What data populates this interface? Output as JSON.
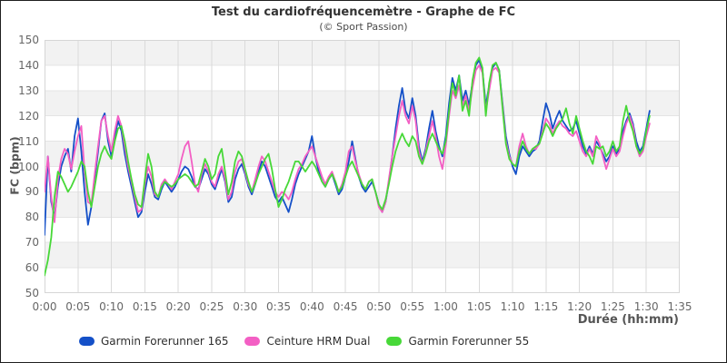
{
  "chart_data": {
    "type": "line",
    "title": "Test du cardiofréquencemètre - Graphe de FC",
    "subtitle": "(© Sport Passion)",
    "xlabel": "Durée (hh:mm)",
    "ylabel": "FC (bpm)",
    "ylim": [
      50,
      150
    ],
    "xlim_minutes": [
      0,
      95
    ],
    "y_ticks": [
      50,
      60,
      70,
      80,
      90,
      100,
      110,
      120,
      130,
      140,
      150
    ],
    "x_ticks": [
      {
        "minutes": 0,
        "label": "0:00"
      },
      {
        "minutes": 5,
        "label": "0:05"
      },
      {
        "minutes": 10,
        "label": "0:10"
      },
      {
        "minutes": 15,
        "label": "0:15"
      },
      {
        "minutes": 20,
        "label": "0:20"
      },
      {
        "minutes": 25,
        "label": "0:25"
      },
      {
        "minutes": 30,
        "label": "0:30"
      },
      {
        "minutes": 35,
        "label": "0:35"
      },
      {
        "minutes": 40,
        "label": "0:40"
      },
      {
        "minutes": 45,
        "label": "0:45"
      },
      {
        "minutes": 50,
        "label": "0:50"
      },
      {
        "minutes": 55,
        "label": "0:55"
      },
      {
        "minutes": 60,
        "label": "1:00"
      },
      {
        "minutes": 65,
        "label": "1:05"
      },
      {
        "minutes": 70,
        "label": "1:10"
      },
      {
        "minutes": 75,
        "label": "1:15"
      },
      {
        "minutes": 80,
        "label": "1:20"
      },
      {
        "minutes": 85,
        "label": "1:25"
      },
      {
        "minutes": 90,
        "label": "1:30"
      },
      {
        "minutes": 95,
        "label": "1:35"
      }
    ],
    "sample_step_minutes": 0.5,
    "grid": true,
    "band_fill_alternating": true,
    "legend_position": "bottom",
    "series": [
      {
        "name": "Garmin Forerunner 165",
        "color": "#1450C8",
        "values": [
          73,
          104,
          86,
          80,
          92,
          100,
          104,
          107,
          98,
          112,
          119,
          106,
          90,
          77,
          84,
          95,
          106,
          118,
          121,
          110,
          104,
          112,
          118,
          114,
          105,
          98,
          92,
          86,
          80,
          82,
          90,
          97,
          93,
          88,
          87,
          91,
          94,
          92,
          90,
          92,
          95,
          98,
          100,
          99,
          96,
          92,
          91,
          95,
          99,
          97,
          93,
          91,
          95,
          99,
          94,
          86,
          88,
          95,
          99,
          101,
          97,
          92,
          89,
          93,
          98,
          102,
          100,
          96,
          92,
          88,
          86,
          88,
          85,
          82,
          87,
          93,
          97,
          100,
          103,
          106,
          112,
          104,
          98,
          94,
          92,
          95,
          97,
          93,
          89,
          91,
          96,
          102,
          110,
          103,
          96,
          92,
          90,
          92,
          94,
          90,
          85,
          82,
          86,
          94,
          104,
          115,
          124,
          131,
          122,
          119,
          127,
          120,
          108,
          102,
          107,
          115,
          122,
          114,
          108,
          104,
          112,
          125,
          135,
          130,
          136,
          126,
          130,
          124,
          133,
          140,
          142,
          138,
          124,
          132,
          139,
          141,
          138,
          125,
          112,
          105,
          100,
          97,
          104,
          108,
          106,
          104,
          106,
          107,
          110,
          118,
          125,
          121,
          115,
          119,
          122,
          118,
          116,
          114,
          115,
          118,
          113,
          108,
          105,
          108,
          105,
          110,
          108,
          105,
          102,
          104,
          108,
          105,
          107,
          114,
          118,
          121,
          117,
          110,
          106,
          108,
          115,
          122
        ]
      },
      {
        "name": "Ceinture HRM Dual",
        "color": "#F35FC4",
        "values": [
          90,
          104,
          88,
          78,
          95,
          103,
          107,
          105,
          99,
          106,
          112,
          116,
          98,
          86,
          85,
          97,
          108,
          118,
          120,
          112,
          106,
          114,
          120,
          116,
          108,
          100,
          94,
          88,
          82,
          83,
          93,
          100,
          96,
          89,
          88,
          93,
          95,
          93,
          91,
          94,
          97,
          103,
          108,
          110,
          102,
          93,
          90,
          97,
          101,
          98,
          94,
          92,
          97,
          100,
          95,
          87,
          90,
          98,
          102,
          103,
          98,
          93,
          90,
          95,
          100,
          104,
          102,
          98,
          94,
          90,
          88,
          90,
          89,
          87,
          90,
          95,
          99,
          101,
          104,
          106,
          108,
          104,
          100,
          96,
          93,
          96,
          98,
          94,
          90,
          93,
          98,
          106,
          108,
          102,
          97,
          93,
          91,
          94,
          95,
          90,
          84,
          82,
          86,
          95,
          104,
          112,
          120,
          126,
          120,
          117,
          124,
          118,
          106,
          101,
          106,
          112,
          118,
          112,
          104,
          99,
          108,
          120,
          130,
          127,
          132,
          124,
          128,
          122,
          131,
          138,
          140,
          137,
          122,
          130,
          138,
          139,
          137,
          124,
          110,
          104,
          101,
          100,
          108,
          113,
          108,
          105,
          107,
          107,
          109,
          114,
          119,
          117,
          113,
          116,
          118,
          116,
          115,
          113,
          112,
          114,
          110,
          106,
          104,
          107,
          104,
          112,
          109,
          104,
          99,
          103,
          107,
          104,
          106,
          112,
          117,
          120,
          116,
          108,
          104,
          106,
          112,
          117
        ]
      },
      {
        "name": "Garmin Forerunner 55",
        "color": "#47D838",
        "values": [
          57,
          63,
          72,
          88,
          98,
          96,
          93,
          90,
          92,
          95,
          98,
          102,
          100,
          90,
          84,
          92,
          100,
          105,
          108,
          105,
          103,
          110,
          115,
          116,
          110,
          102,
          95,
          89,
          85,
          84,
          95,
          105,
          100,
          90,
          88,
          92,
          94,
          93,
          92,
          93,
          95,
          96,
          97,
          96,
          94,
          92,
          93,
          98,
          103,
          100,
          95,
          97,
          104,
          107,
          98,
          89,
          94,
          102,
          106,
          104,
          99,
          94,
          90,
          93,
          97,
          100,
          103,
          105,
          99,
          91,
          84,
          87,
          91,
          94,
          98,
          102,
          102,
          100,
          98,
          100,
          102,
          100,
          97,
          94,
          92,
          95,
          97,
          94,
          90,
          92,
          96,
          100,
          102,
          99,
          96,
          93,
          91,
          94,
          95,
          90,
          85,
          83,
          87,
          93,
          100,
          106,
          110,
          113,
          110,
          108,
          112,
          110,
          104,
          101,
          105,
          110,
          113,
          110,
          107,
          105,
          110,
          122,
          133,
          128,
          136,
          122,
          126,
          120,
          134,
          141,
          143,
          139,
          120,
          133,
          140,
          141,
          138,
          123,
          109,
          103,
          101,
          100,
          106,
          110,
          107,
          105,
          107,
          108,
          109,
          113,
          117,
          115,
          112,
          115,
          117,
          119,
          123,
          117,
          113,
          120,
          115,
          110,
          106,
          104,
          101,
          108,
          107,
          108,
          104,
          106,
          110,
          106,
          108,
          118,
          124,
          118,
          114,
          108,
          105,
          107,
          114,
          120
        ]
      }
    ]
  }
}
